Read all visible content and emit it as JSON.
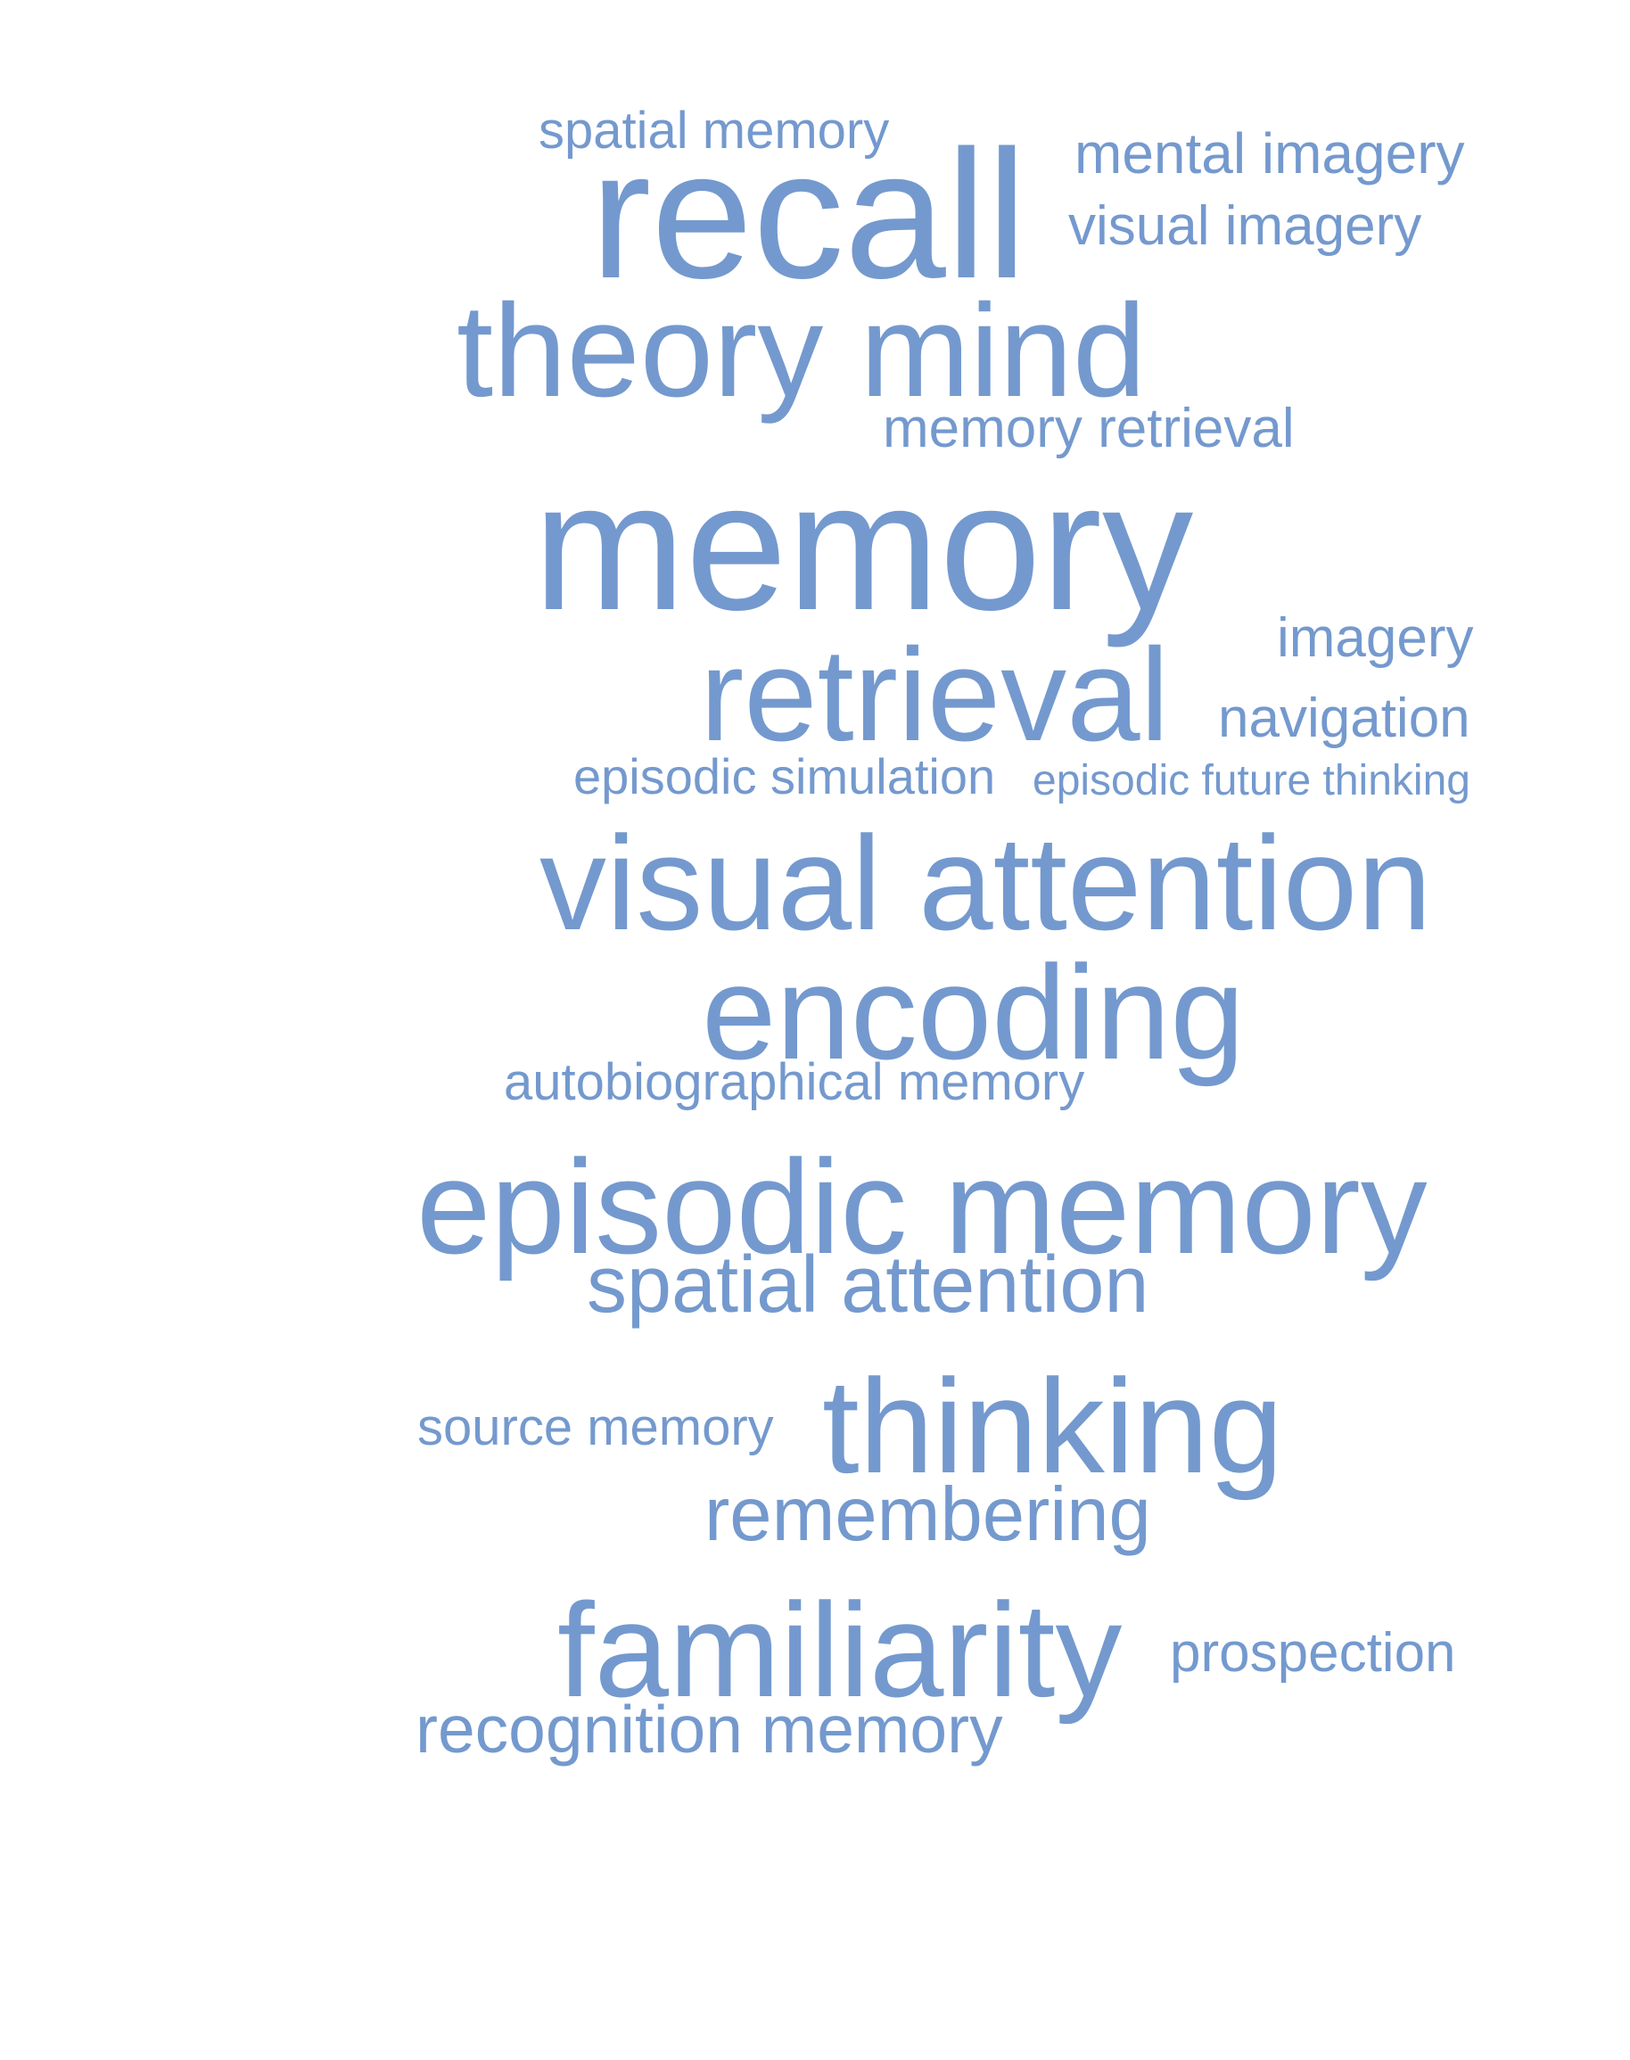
{
  "word_color": "#7499ce",
  "background_color": "#ffffff",
  "words": [
    {
      "id": "spatial-memory",
      "text": "spatial memory"
    },
    {
      "id": "mental-imagery",
      "text": "mental imagery"
    },
    {
      "id": "recall",
      "text": "recall"
    },
    {
      "id": "visual-imagery",
      "text": "visual imagery"
    },
    {
      "id": "theory-mind",
      "text": "theory mind"
    },
    {
      "id": "memory-retrieval",
      "text": "memory retrieval"
    },
    {
      "id": "memory",
      "text": "memory"
    },
    {
      "id": "imagery",
      "text": "imagery"
    },
    {
      "id": "retrieval",
      "text": "retrieval"
    },
    {
      "id": "navigation",
      "text": "navigation"
    },
    {
      "id": "episodic-simulation",
      "text": "episodic simulation"
    },
    {
      "id": "episodic-future-thinking",
      "text": "episodic future thinking"
    },
    {
      "id": "visual-attention",
      "text": "visual attention"
    },
    {
      "id": "encoding",
      "text": "encoding"
    },
    {
      "id": "autobiographical-memory",
      "text": "autobiographical memory"
    },
    {
      "id": "episodic-memory",
      "text": "episodic memory"
    },
    {
      "id": "spatial-attention",
      "text": "spatial attention"
    },
    {
      "id": "source-memory",
      "text": "source memory"
    },
    {
      "id": "thinking",
      "text": "thinking"
    },
    {
      "id": "remembering",
      "text": "remembering"
    },
    {
      "id": "familiarity",
      "text": "familiarity"
    },
    {
      "id": "prospection",
      "text": "prospection"
    },
    {
      "id": "recognition-memory",
      "text": "recognition memory"
    }
  ]
}
